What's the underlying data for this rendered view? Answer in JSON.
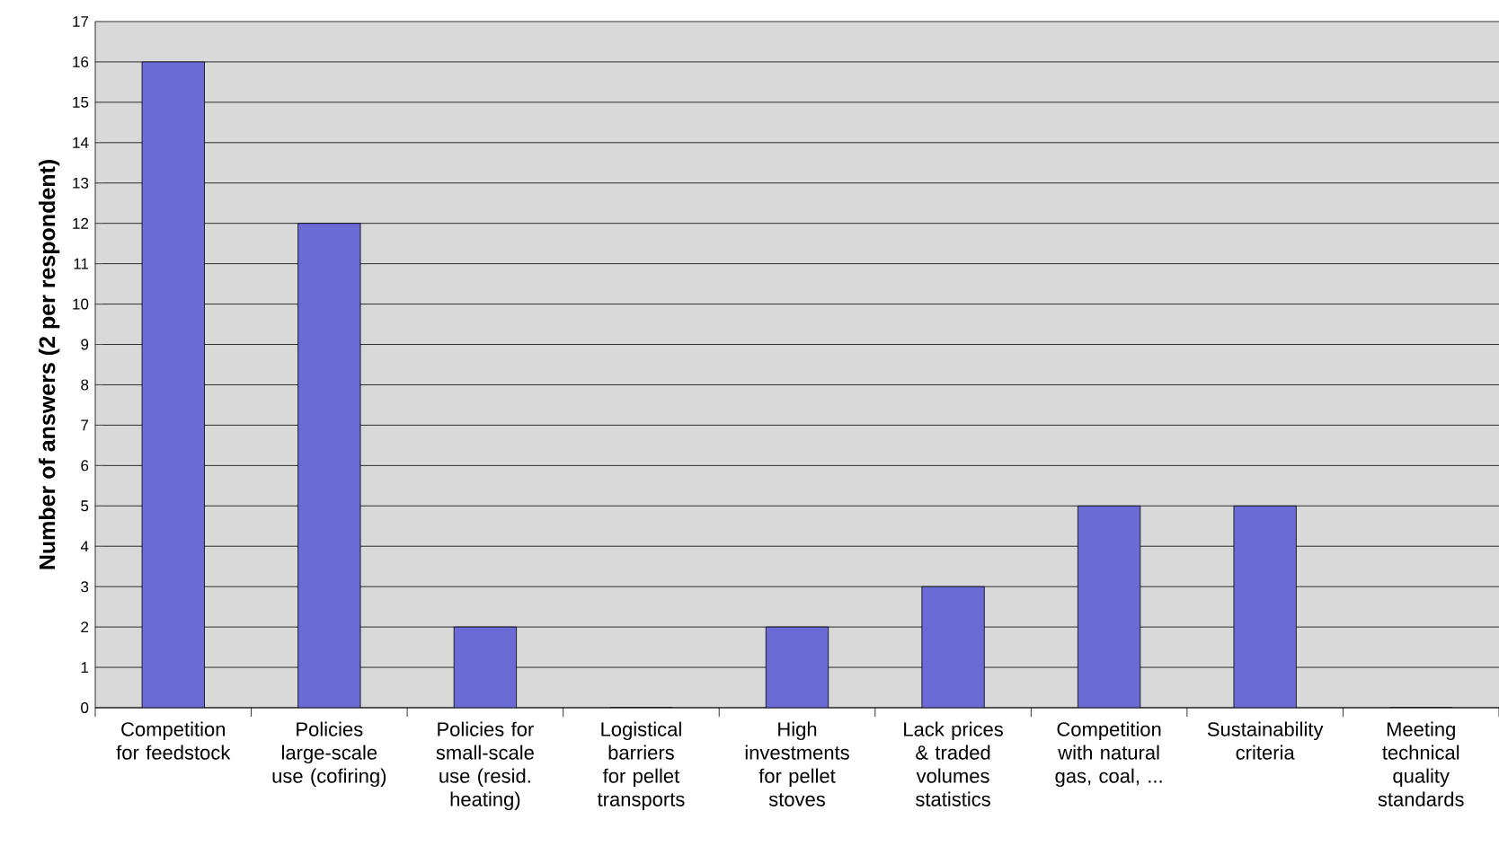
{
  "chart_data": {
    "type": "bar",
    "ylabel": "Number of answers (2 per respondent)",
    "categories": [
      "Competition for feedstock",
      "Policies large-scale use (cofiring)",
      "Policies for small-scale use (resid. heating)",
      "Logistical barriers for pellet transports",
      "High investments for pellet stoves",
      "Lack prices & traded volumes statistics",
      "Competition with natural gas, coal, ...",
      "Sustainability criteria",
      "Meeting technical quality standards"
    ],
    "values": [
      16,
      12,
      2,
      0,
      2,
      3,
      5,
      5,
      0
    ],
    "color": "#6b6bd6",
    "ylim": [
      0,
      17
    ],
    "yticks": [
      0,
      1,
      2,
      3,
      4,
      5,
      6,
      7,
      8,
      9,
      10,
      11,
      12,
      13,
      14,
      15,
      16,
      17
    ],
    "grid": "y"
  }
}
